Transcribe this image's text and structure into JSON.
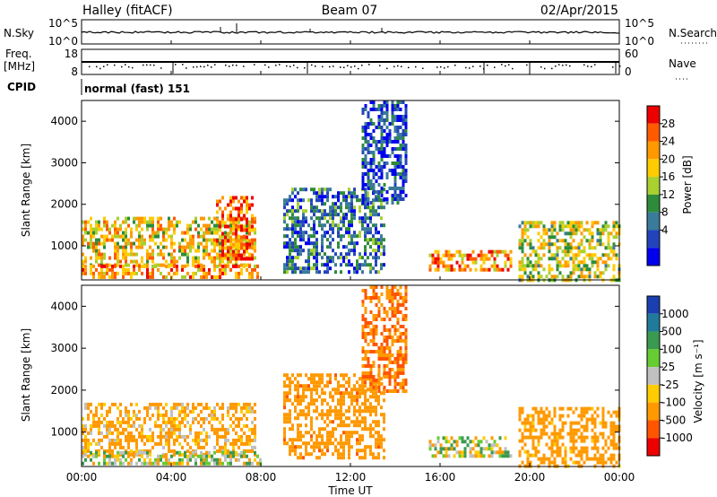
{
  "header": {
    "station": "Halley (fitACF)",
    "beam": "Beam 07",
    "date": "02/Apr/2015"
  },
  "nsky": {
    "label": "N.Sky",
    "right_label": "N.Search",
    "ticks_left": [
      "10^5",
      "10^0"
    ],
    "ticks_right": [
      "10^5",
      "10^0"
    ]
  },
  "freq": {
    "label_line1": "Freq.",
    "label_line2": "[MHz]",
    "ticks_left": [
      "18",
      "8"
    ],
    "ticks_right": [
      "60",
      "0"
    ],
    "right_label": "Nave"
  },
  "cpid": {
    "label": "CPID",
    "value": "normal (fast) 151"
  },
  "power_panel": {
    "ylabel": "Slant Range [km]",
    "yticks": [
      "4000",
      "3000",
      "2000",
      "1000"
    ],
    "colorbar_label": "Power [dB]",
    "colorbar_ticks": [
      "28",
      "24",
      "20",
      "16",
      "12",
      "8",
      "4"
    ],
    "colorbar_colors": [
      "#ee0000",
      "#ff5a00",
      "#ff9900",
      "#ffcc00",
      "#a8d030",
      "#2e8b3a",
      "#3a7a9a",
      "#2244bb",
      "#0000ee"
    ]
  },
  "velocity_panel": {
    "ylabel": "Slant Range [km]",
    "yticks": [
      "4000",
      "3000",
      "2000",
      "1000"
    ],
    "colorbar_label": "Velocity [m s⁻¹]",
    "colorbar_ticks": [
      "1000",
      "500",
      "100",
      "25",
      "-25",
      "-100",
      "-500",
      "-1000"
    ],
    "colorbar_colors": [
      "#1a3fb0",
      "#1f7a9c",
      "#3a9a50",
      "#66cc33",
      "#c0c0c0",
      "#ffcc00",
      "#ff9900",
      "#ff5500",
      "#ee0000"
    ]
  },
  "xaxis": {
    "label": "Time UT",
    "ticks": [
      "00:00",
      "04:00",
      "08:00",
      "12:00",
      "16:00",
      "20:00",
      "00:00"
    ]
  },
  "chart_data": [
    {
      "type": "heatmap",
      "title": "Power",
      "x_range_hours": [
        0,
        24
      ],
      "y_range_km": [
        180,
        4500
      ],
      "colorbar_range_db": [
        0,
        30
      ],
      "regions": [
        {
          "t": [
            0,
            7.8
          ],
          "km": [
            500,
            1700
          ],
          "db": 18
        },
        {
          "t": [
            6.0,
            7.6
          ],
          "km": [
            700,
            2200
          ],
          "db": 24
        },
        {
          "t": [
            0,
            8.0
          ],
          "km": [
            250,
            550
          ],
          "db": 22
        },
        {
          "t": [
            9.0,
            13.5
          ],
          "km": [
            400,
            2400
          ],
          "db": 8
        },
        {
          "t": [
            12.5,
            14.5
          ],
          "km": [
            2000,
            4500
          ],
          "db": 6
        },
        {
          "t": [
            15.5,
            19.2
          ],
          "km": [
            400,
            900
          ],
          "db": 22
        },
        {
          "t": [
            19.5,
            24.0
          ],
          "km": [
            200,
            1600
          ],
          "db": 16
        }
      ]
    },
    {
      "type": "heatmap",
      "title": "Velocity",
      "x_range_hours": [
        0,
        24
      ],
      "y_range_km": [
        180,
        4500
      ],
      "colorbar_range_ms": [
        -1000,
        1000
      ],
      "regions": [
        {
          "t": [
            0,
            7.8
          ],
          "km": [
            500,
            1700
          ],
          "vel": -100
        },
        {
          "t": [
            0,
            8.0
          ],
          "km": [
            250,
            550
          ],
          "vel": 0
        },
        {
          "t": [
            9.0,
            13.5
          ],
          "km": [
            400,
            2400
          ],
          "vel": -200
        },
        {
          "t": [
            12.5,
            14.5
          ],
          "km": [
            2000,
            4500
          ],
          "vel": -300
        },
        {
          "t": [
            15.5,
            19.2
          ],
          "km": [
            400,
            900
          ],
          "vel": 0
        },
        {
          "t": [
            19.5,
            24.0
          ],
          "km": [
            200,
            1600
          ],
          "vel": -150
        }
      ]
    }
  ]
}
